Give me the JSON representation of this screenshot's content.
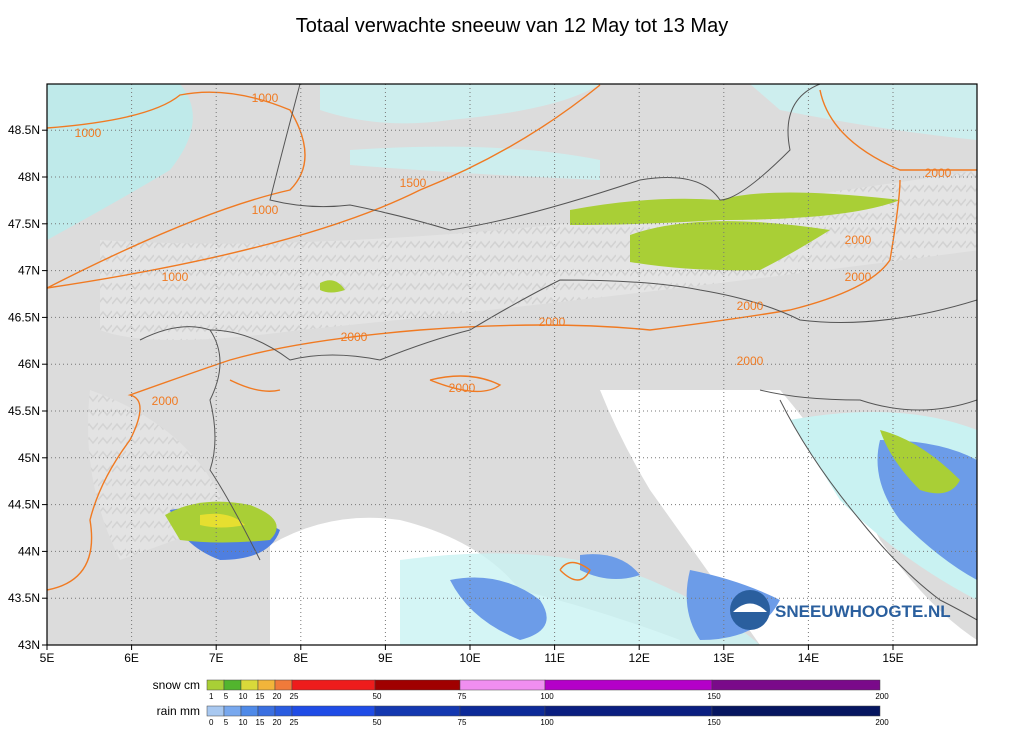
{
  "title": "Totaal verwachte sneeuw van 12 May tot 13 May",
  "map": {
    "lon_labels": [
      "5E",
      "6E",
      "7E",
      "8E",
      "9E",
      "10E",
      "11E",
      "12E",
      "13E",
      "14E",
      "15E"
    ],
    "lat_labels": [
      "43N",
      "43.5N",
      "44N",
      "44.5N",
      "45N",
      "45.5N",
      "46N",
      "46.5N",
      "47N",
      "47.5N",
      "48N",
      "48.5N"
    ],
    "contour_labels": [
      "1000",
      "1000",
      "1500",
      "1000",
      "1000",
      "2000",
      "2000",
      "2000",
      "2000",
      "2000",
      "2000",
      "2000",
      "2000",
      "2000"
    ]
  },
  "watermark": "SNEEUWHOOGTE.NL",
  "legend": {
    "snow": {
      "label": "snow cm",
      "ticks": [
        "1",
        "5",
        "10",
        "15",
        "20",
        "25",
        "50",
        "75",
        "100",
        "150",
        "200"
      ]
    },
    "rain": {
      "label": "rain mm",
      "ticks": [
        "0",
        "5",
        "10",
        "15",
        "20",
        "25",
        "50",
        "75",
        "100",
        "150",
        "200"
      ]
    }
  }
}
